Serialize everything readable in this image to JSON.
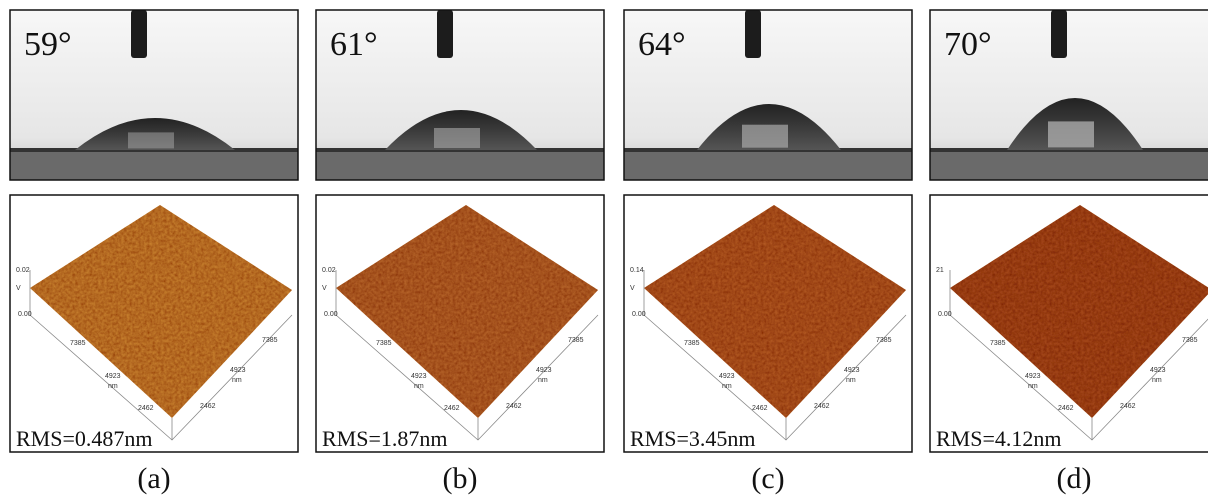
{
  "panels": [
    {
      "contact_angle": "59°",
      "rms": "RMS=0.487nm",
      "label": "(a)",
      "z_max": "0.02",
      "z_min": "0.00",
      "z_unit": "V"
    },
    {
      "contact_angle": "61°",
      "rms": "RMS=1.87nm",
      "label": "(b)",
      "z_max": "0.02",
      "z_min": "0.00",
      "z_unit": "V"
    },
    {
      "contact_angle": "64°",
      "rms": "RMS=3.45nm",
      "label": "(c)",
      "z_max": "0.14",
      "z_min": "0.00",
      "z_unit": "V"
    },
    {
      "contact_angle": "70°",
      "rms": "RMS=4.12nm",
      "label": "(d)",
      "z_max": "21",
      "z_min": "0.00"
    }
  ],
  "axis_ticks": [
    "7385",
    "4923",
    "2462"
  ],
  "axis_unit": "nm"
}
